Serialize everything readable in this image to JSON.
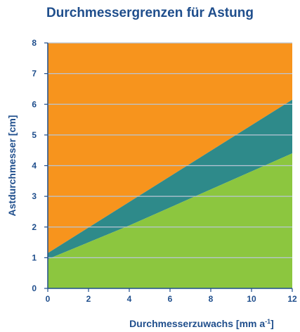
{
  "chart_data": {
    "type": "area",
    "title": "Durchmessergrenzen für Astung",
    "xlabel": "Durchmesserzuwachs [mm a",
    "xlabel_sup": "-1",
    "xlabel_end": "]",
    "ylabel": "Astdurchmesser [cm]",
    "xlim": [
      0,
      12
    ],
    "ylim": [
      0,
      8
    ],
    "x_ticks": [
      0,
      2,
      4,
      6,
      8,
      10,
      12
    ],
    "y_ticks": [
      0,
      1,
      2,
      3,
      4,
      5,
      6,
      7,
      8
    ],
    "grid": true,
    "lower_boundary": {
      "x": [
        0,
        4,
        12
      ],
      "y": [
        0.95,
        2.05,
        4.4
      ]
    },
    "upper_boundary": {
      "x": [
        0,
        12
      ],
      "y": [
        1.15,
        6.15
      ]
    },
    "colors": {
      "below_lower": "#8cc63f",
      "between": "#2e8a8a",
      "above_upper": "#f7941d",
      "axis": "#1f4e8c",
      "grid": "#b9c6d6"
    }
  }
}
